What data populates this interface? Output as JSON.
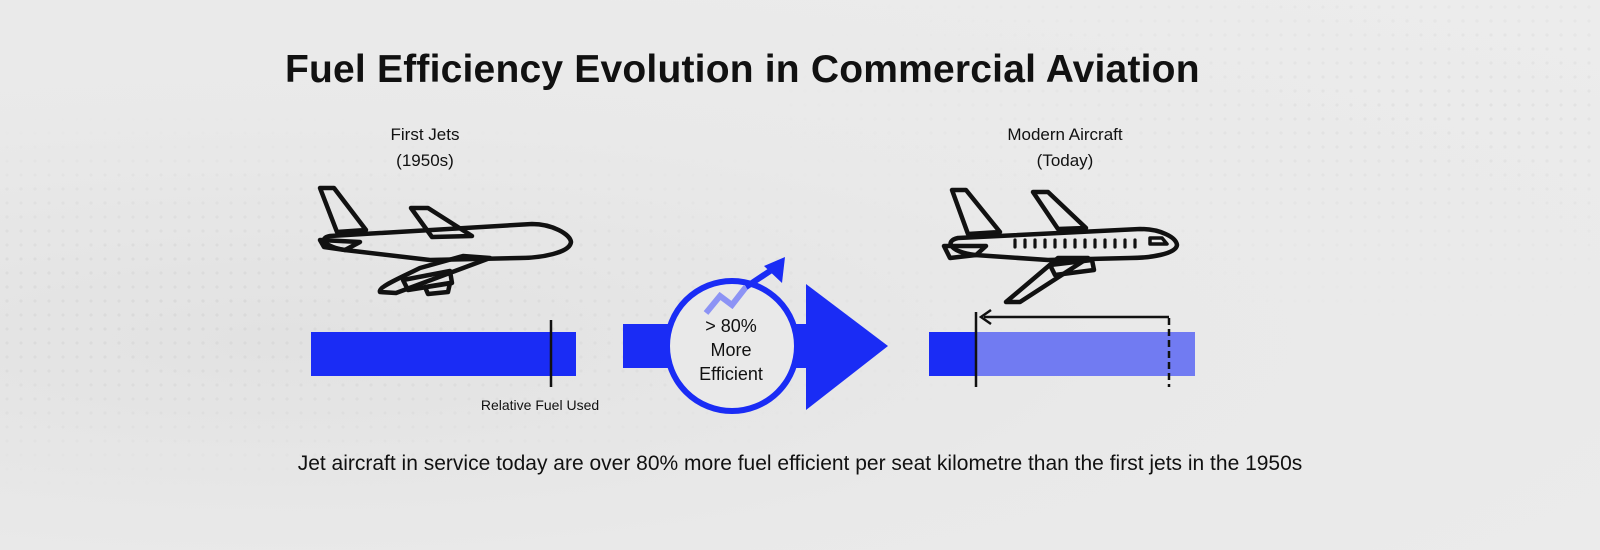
{
  "title": "Fuel Efficiency Evolution in Commercial Aviation",
  "left": {
    "label_line1": "First Jets",
    "label_line2": "(1950s)",
    "bar_label": "Relative Fuel Used"
  },
  "right": {
    "label_line1": "Modern Aircraft",
    "label_line2": "(Today)"
  },
  "efficiency": {
    "line1": "> 80%",
    "line2": "More",
    "line3": "Efficient"
  },
  "caption": "Jet aircraft in service today are over 80% more fuel efficient per seat kilometre than the first jets in the 1950s",
  "colors": {
    "accent": "#1a2cf5",
    "accent_light": "#717bf2",
    "trend_light": "#8c93f5",
    "ink": "#111111",
    "background": "#e9e9e9"
  },
  "icons": [
    "airplane-icon",
    "airplane-icon",
    "trend-up-arrow-icon",
    "right-arrow-icon"
  ]
}
